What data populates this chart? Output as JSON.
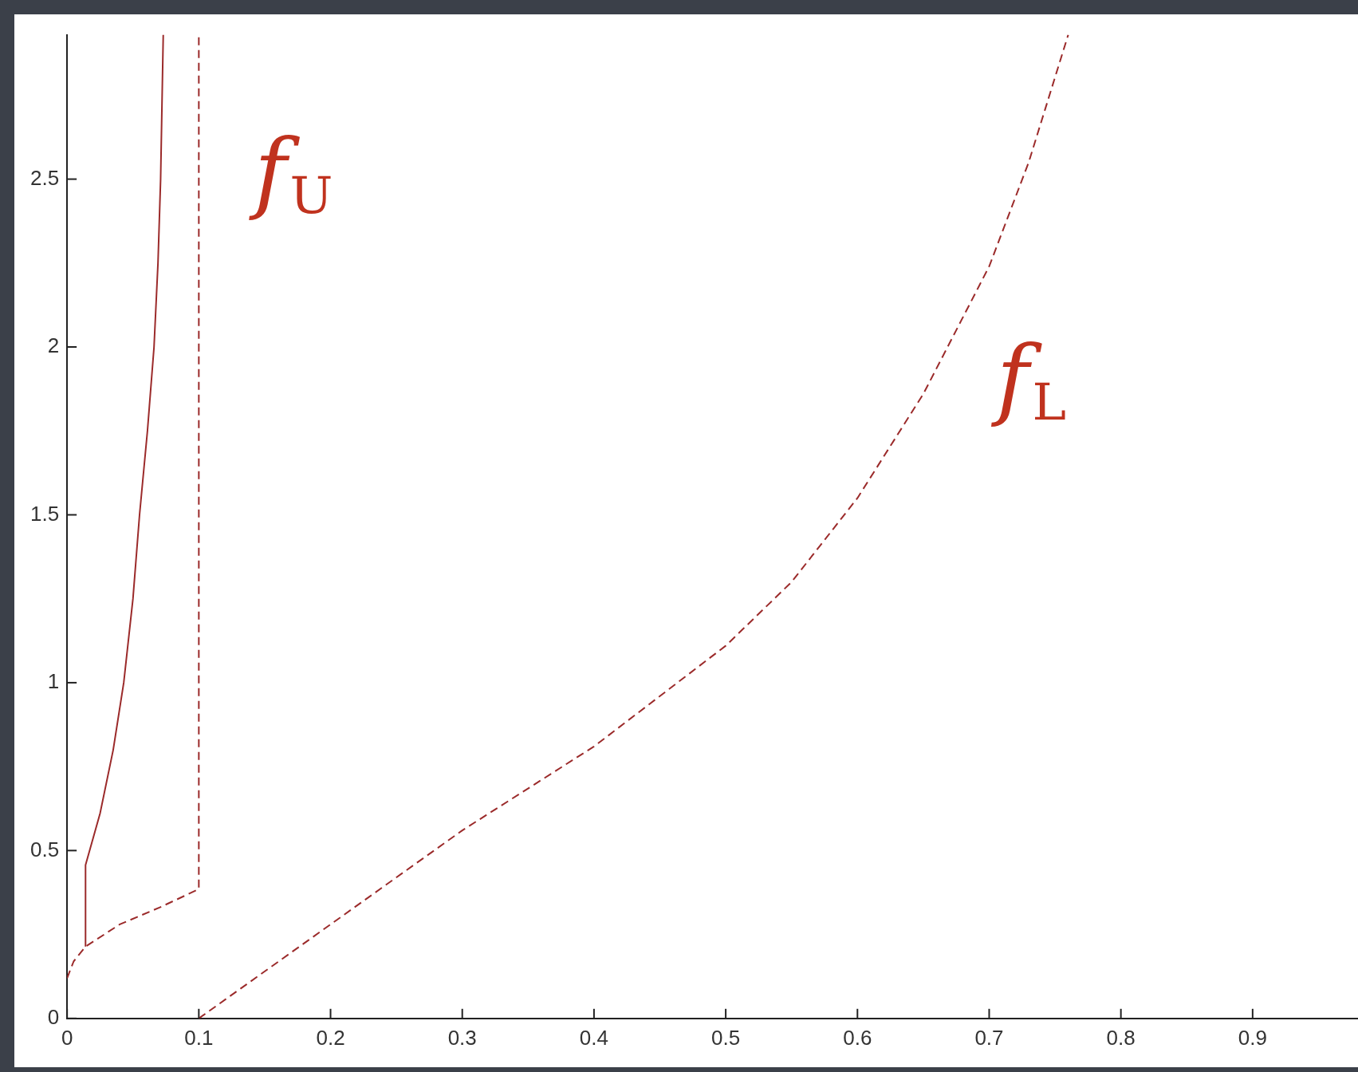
{
  "chart_data": {
    "type": "line",
    "xlim": [
      0,
      0.98
    ],
    "ylim": [
      0,
      2.93
    ],
    "xticks": [
      0,
      0.1,
      0.2,
      0.3,
      0.4,
      0.5,
      0.6,
      0.7,
      0.8,
      0.9
    ],
    "yticks": [
      0,
      0.5,
      1,
      1.5,
      2,
      2.5
    ],
    "grid": false,
    "legend": false,
    "marker": "none",
    "series": [
      {
        "color": "#9b2a2a",
        "line_style": "solid",
        "x": [
          0.014,
          0.014,
          0.025,
          0.035,
          0.043,
          0.05,
          0.055,
          0.061,
          0.066,
          0.069,
          0.071,
          0.073
        ],
        "values": [
          0.214,
          0.457,
          0.61,
          0.8,
          1.0,
          1.25,
          1.5,
          1.75,
          2.0,
          2.25,
          2.5,
          2.93
        ]
      },
      {
        "color": "#9b2a2a",
        "line_style": "dashed",
        "x": [
          0,
          0.005,
          0.014,
          0.04,
          0.07,
          0.1,
          0.1
        ],
        "values": [
          0.12,
          0.17,
          0.214,
          0.28,
          0.33,
          0.385,
          2.93
        ]
      },
      {
        "color": "#9b2a2a",
        "line_style": "dashed",
        "x": [
          0.1,
          0.2,
          0.3,
          0.4,
          0.5,
          0.55,
          0.6,
          0.65,
          0.7,
          0.73,
          0.76
        ],
        "values": [
          0,
          0.28,
          0.56,
          0.81,
          1.11,
          1.3,
          1.55,
          1.86,
          2.24,
          2.55,
          2.93
        ]
      }
    ],
    "annotations": [
      "f$_{U}$",
      "f$_{L}$"
    ]
  }
}
